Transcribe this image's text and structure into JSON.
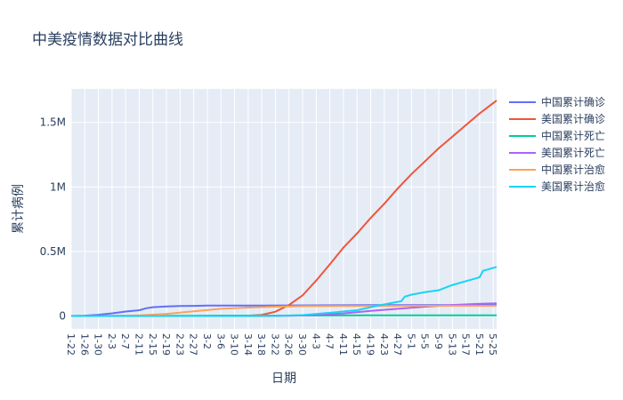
{
  "chart_data": {
    "type": "line",
    "title": "中美疫情数据对比曲线",
    "xlabel": "日期",
    "ylabel": "累计病例",
    "x_tick_labels": [
      "1-22",
      "1-26",
      "1-30",
      "2-3",
      "2-7",
      "2-11",
      "2-15",
      "2-19",
      "2-23",
      "2-27",
      "3-2",
      "3-6",
      "3-10",
      "3-14",
      "3-18",
      "3-22",
      "3-26",
      "3-30",
      "4-3",
      "4-7",
      "4-11",
      "4-15",
      "4-19",
      "4-23",
      "4-27",
      "5-1",
      "5-5",
      "5-9",
      "5-13",
      "5-17",
      "5-21",
      "5-25"
    ],
    "x_range": [
      "1-22",
      "5-26"
    ],
    "y_tick_labels": [
      "0",
      "0.5M",
      "1M",
      "1.5M"
    ],
    "y_ticks": [
      0,
      500000,
      1000000,
      1500000
    ],
    "ylim": [
      -100000,
      1760000
    ],
    "grid": true,
    "legend_position": "right",
    "series": [
      {
        "name": "中国累计确诊",
        "color": "#636efa",
        "points": [
          [
            "1-22",
            548
          ],
          [
            "1-26",
            2744
          ],
          [
            "1-30",
            9692
          ],
          [
            "2-3",
            20438
          ],
          [
            "2-7",
            34598
          ],
          [
            "2-11",
            44653
          ],
          [
            "2-13",
            59804
          ],
          [
            "2-15",
            68000
          ],
          [
            "2-19",
            74576
          ],
          [
            "2-23",
            76996
          ],
          [
            "2-27",
            78497
          ],
          [
            "3-2",
            80151
          ],
          [
            "3-10",
            80778
          ],
          [
            "3-18",
            81102
          ],
          [
            "3-26",
            81782
          ],
          [
            "4-3",
            82516
          ],
          [
            "4-11",
            83014
          ],
          [
            "4-19",
            83805
          ],
          [
            "4-27",
            83918
          ],
          [
            "5-5",
            83966
          ],
          [
            "5-13",
            84018
          ],
          [
            "5-21",
            84063
          ],
          [
            "5-26",
            84102
          ]
        ]
      },
      {
        "name": "美国累计确诊",
        "color": "#ef553b",
        "points": [
          [
            "1-22",
            1
          ],
          [
            "2-27",
            60
          ],
          [
            "3-10",
            1000
          ],
          [
            "3-14",
            2900
          ],
          [
            "3-18",
            9000
          ],
          [
            "3-22",
            33000
          ],
          [
            "3-26",
            85000
          ],
          [
            "3-30",
            160000
          ],
          [
            "4-3",
            275000
          ],
          [
            "4-7",
            400000
          ],
          [
            "4-11",
            530000
          ],
          [
            "4-15",
            640000
          ],
          [
            "4-19",
            760000
          ],
          [
            "4-23",
            870000
          ],
          [
            "4-27",
            990000
          ],
          [
            "5-1",
            1100000
          ],
          [
            "5-5",
            1200000
          ],
          [
            "5-9",
            1300000
          ],
          [
            "5-13",
            1390000
          ],
          [
            "5-17",
            1480000
          ],
          [
            "5-21",
            1570000
          ],
          [
            "5-26",
            1670000
          ]
        ]
      },
      {
        "name": "中国累计死亡",
        "color": "#00cc96",
        "points": [
          [
            "1-22",
            17
          ],
          [
            "2-3",
            425
          ],
          [
            "2-11",
            1113
          ],
          [
            "2-19",
            2118
          ],
          [
            "2-27",
            2788
          ],
          [
            "3-10",
            3136
          ],
          [
            "3-26",
            3292
          ],
          [
            "4-17",
            4632
          ],
          [
            "5-26",
            4638
          ]
        ]
      },
      {
        "name": "美国累计死亡",
        "color": "#ab63fa",
        "points": [
          [
            "1-22",
            0
          ],
          [
            "3-18",
            150
          ],
          [
            "3-26",
            1300
          ],
          [
            "4-3",
            7000
          ],
          [
            "4-11",
            20000
          ],
          [
            "4-19",
            40000
          ],
          [
            "4-27",
            56000
          ],
          [
            "5-5",
            72000
          ],
          [
            "5-13",
            85000
          ],
          [
            "5-21",
            94000
          ],
          [
            "5-26",
            98000
          ]
        ]
      },
      {
        "name": "中国累计治愈",
        "color": "#ffa15a",
        "points": [
          [
            "1-22",
            28
          ],
          [
            "2-3",
            632
          ],
          [
            "2-11",
            4740
          ],
          [
            "2-19",
            16155
          ],
          [
            "2-27",
            36117
          ],
          [
            "3-6",
            55478
          ],
          [
            "3-14",
            65660
          ],
          [
            "3-22",
            72244
          ],
          [
            "3-30",
            76206
          ],
          [
            "4-11",
            77900
          ],
          [
            "4-23",
            78200
          ],
          [
            "5-5",
            78900
          ],
          [
            "5-26",
            79400
          ]
        ]
      },
      {
        "name": "美国累计治愈",
        "color": "#19d3f3",
        "points": [
          [
            "1-22",
            0
          ],
          [
            "3-14",
            100
          ],
          [
            "3-22",
            1000
          ],
          [
            "3-30",
            7000
          ],
          [
            "4-7",
            25000
          ],
          [
            "4-15",
            45000
          ],
          [
            "4-21",
            80000
          ],
          [
            "4-25",
            100000
          ],
          [
            "4-28",
            115000
          ],
          [
            "4-29",
            150000
          ],
          [
            "5-1",
            165000
          ],
          [
            "5-5",
            185000
          ],
          [
            "5-9",
            200000
          ],
          [
            "5-13",
            240000
          ],
          [
            "5-17",
            270000
          ],
          [
            "5-21",
            300000
          ],
          [
            "5-22",
            350000
          ],
          [
            "5-26",
            380000
          ]
        ]
      }
    ]
  }
}
